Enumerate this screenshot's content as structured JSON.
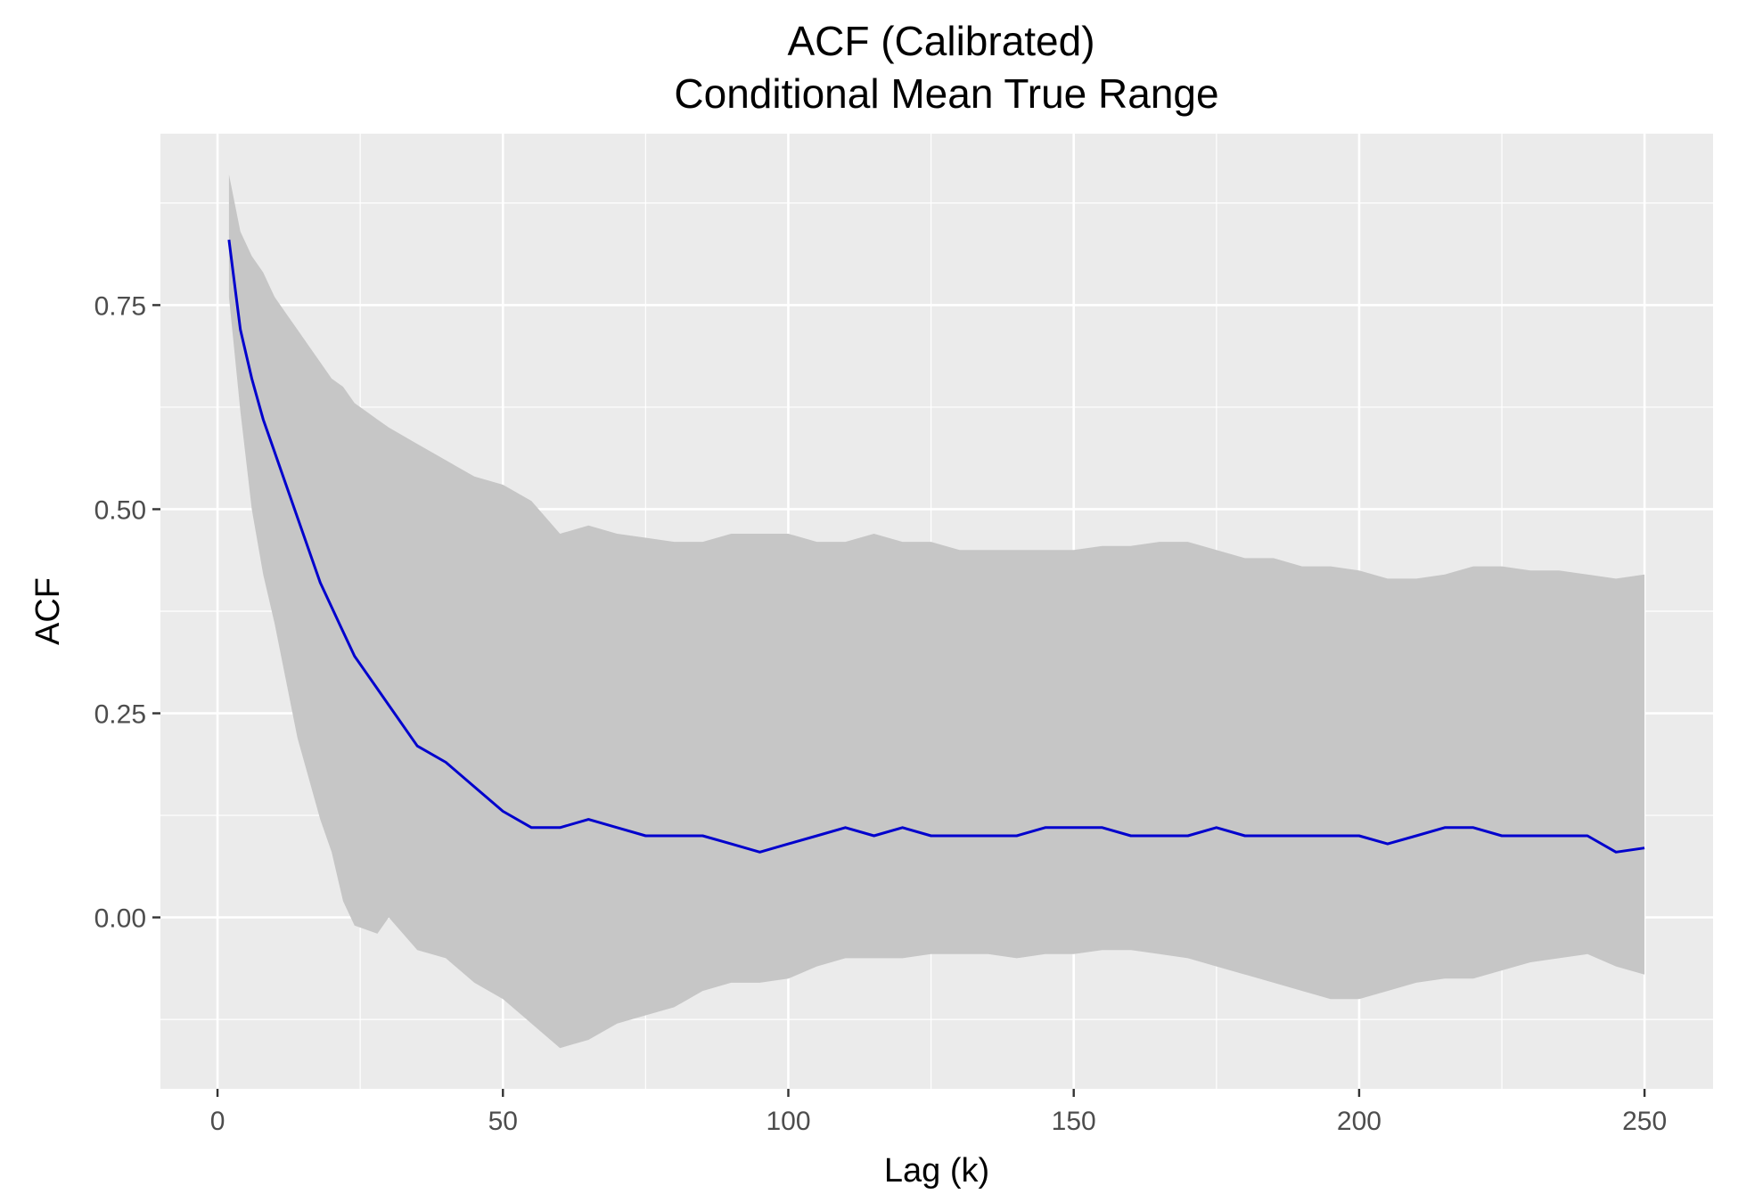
{
  "chart_data": {
    "type": "line",
    "title": "ACF (Calibrated)",
    "subtitle": "Conditional Mean True Range",
    "xlabel": "Lag (k)",
    "ylabel": "ACF",
    "xlim": [
      -10,
      262
    ],
    "ylim": [
      -0.21,
      0.96
    ],
    "x_ticks": [
      0,
      50,
      100,
      150,
      200,
      250
    ],
    "x_tick_labels": [
      "0",
      "50",
      "100",
      "150",
      "200",
      "250"
    ],
    "y_ticks": [
      0.0,
      0.25,
      0.5,
      0.75
    ],
    "y_tick_labels": [
      "0.00",
      "0.25",
      "0.50",
      "0.75"
    ],
    "grid": true,
    "panel_background": "#EBEBEB",
    "line_color": "#0000CD",
    "band_color": "#C6C6C6",
    "series": [
      {
        "x": [
          2,
          4,
          6,
          8,
          10,
          12,
          14,
          16,
          18,
          20,
          22,
          24,
          26,
          28,
          30,
          35,
          40,
          45,
          50,
          55,
          60,
          65,
          70,
          75,
          80,
          85,
          90,
          95,
          100,
          105,
          110,
          115,
          120,
          125,
          130,
          135,
          140,
          145,
          150,
          155,
          160,
          165,
          170,
          175,
          180,
          185,
          190,
          195,
          200,
          205,
          210,
          215,
          220,
          225,
          230,
          235,
          240,
          245,
          250
        ],
        "values": [
          0.83,
          0.72,
          0.66,
          0.61,
          0.57,
          0.53,
          0.49,
          0.45,
          0.41,
          0.38,
          0.35,
          0.32,
          0.3,
          0.28,
          0.26,
          0.21,
          0.19,
          0.16,
          0.13,
          0.11,
          0.11,
          0.12,
          0.11,
          0.1,
          0.1,
          0.1,
          0.09,
          0.08,
          0.09,
          0.1,
          0.11,
          0.1,
          0.11,
          0.1,
          0.1,
          0.1,
          0.1,
          0.11,
          0.11,
          0.11,
          0.1,
          0.1,
          0.1,
          0.11,
          0.1,
          0.1,
          0.1,
          0.1,
          0.1,
          0.09,
          0.1,
          0.11,
          0.11,
          0.1,
          0.1,
          0.1,
          0.1,
          0.08,
          0.085
        ],
        "upper": [
          0.91,
          0.84,
          0.81,
          0.79,
          0.76,
          0.74,
          0.72,
          0.7,
          0.68,
          0.66,
          0.65,
          0.63,
          0.62,
          0.61,
          0.6,
          0.58,
          0.56,
          0.54,
          0.53,
          0.51,
          0.47,
          0.48,
          0.47,
          0.465,
          0.46,
          0.46,
          0.47,
          0.47,
          0.47,
          0.46,
          0.46,
          0.47,
          0.46,
          0.46,
          0.45,
          0.45,
          0.45,
          0.45,
          0.45,
          0.455,
          0.455,
          0.46,
          0.46,
          0.45,
          0.44,
          0.44,
          0.43,
          0.43,
          0.425,
          0.415,
          0.415,
          0.42,
          0.43,
          0.43,
          0.425,
          0.425,
          0.42,
          0.415,
          0.42
        ],
        "lower": [
          0.76,
          0.62,
          0.5,
          0.42,
          0.36,
          0.29,
          0.22,
          0.17,
          0.12,
          0.08,
          0.02,
          -0.01,
          -0.015,
          -0.02,
          0.0,
          -0.04,
          -0.05,
          -0.08,
          -0.1,
          -0.13,
          -0.16,
          -0.15,
          -0.13,
          -0.12,
          -0.11,
          -0.09,
          -0.08,
          -0.08,
          -0.075,
          -0.06,
          -0.05,
          -0.05,
          -0.05,
          -0.045,
          -0.045,
          -0.045,
          -0.05,
          -0.045,
          -0.045,
          -0.04,
          -0.04,
          -0.045,
          -0.05,
          -0.06,
          -0.07,
          -0.08,
          -0.09,
          -0.1,
          -0.1,
          -0.09,
          -0.08,
          -0.075,
          -0.075,
          -0.065,
          -0.055,
          -0.05,
          -0.045,
          -0.06,
          -0.07
        ]
      }
    ]
  }
}
